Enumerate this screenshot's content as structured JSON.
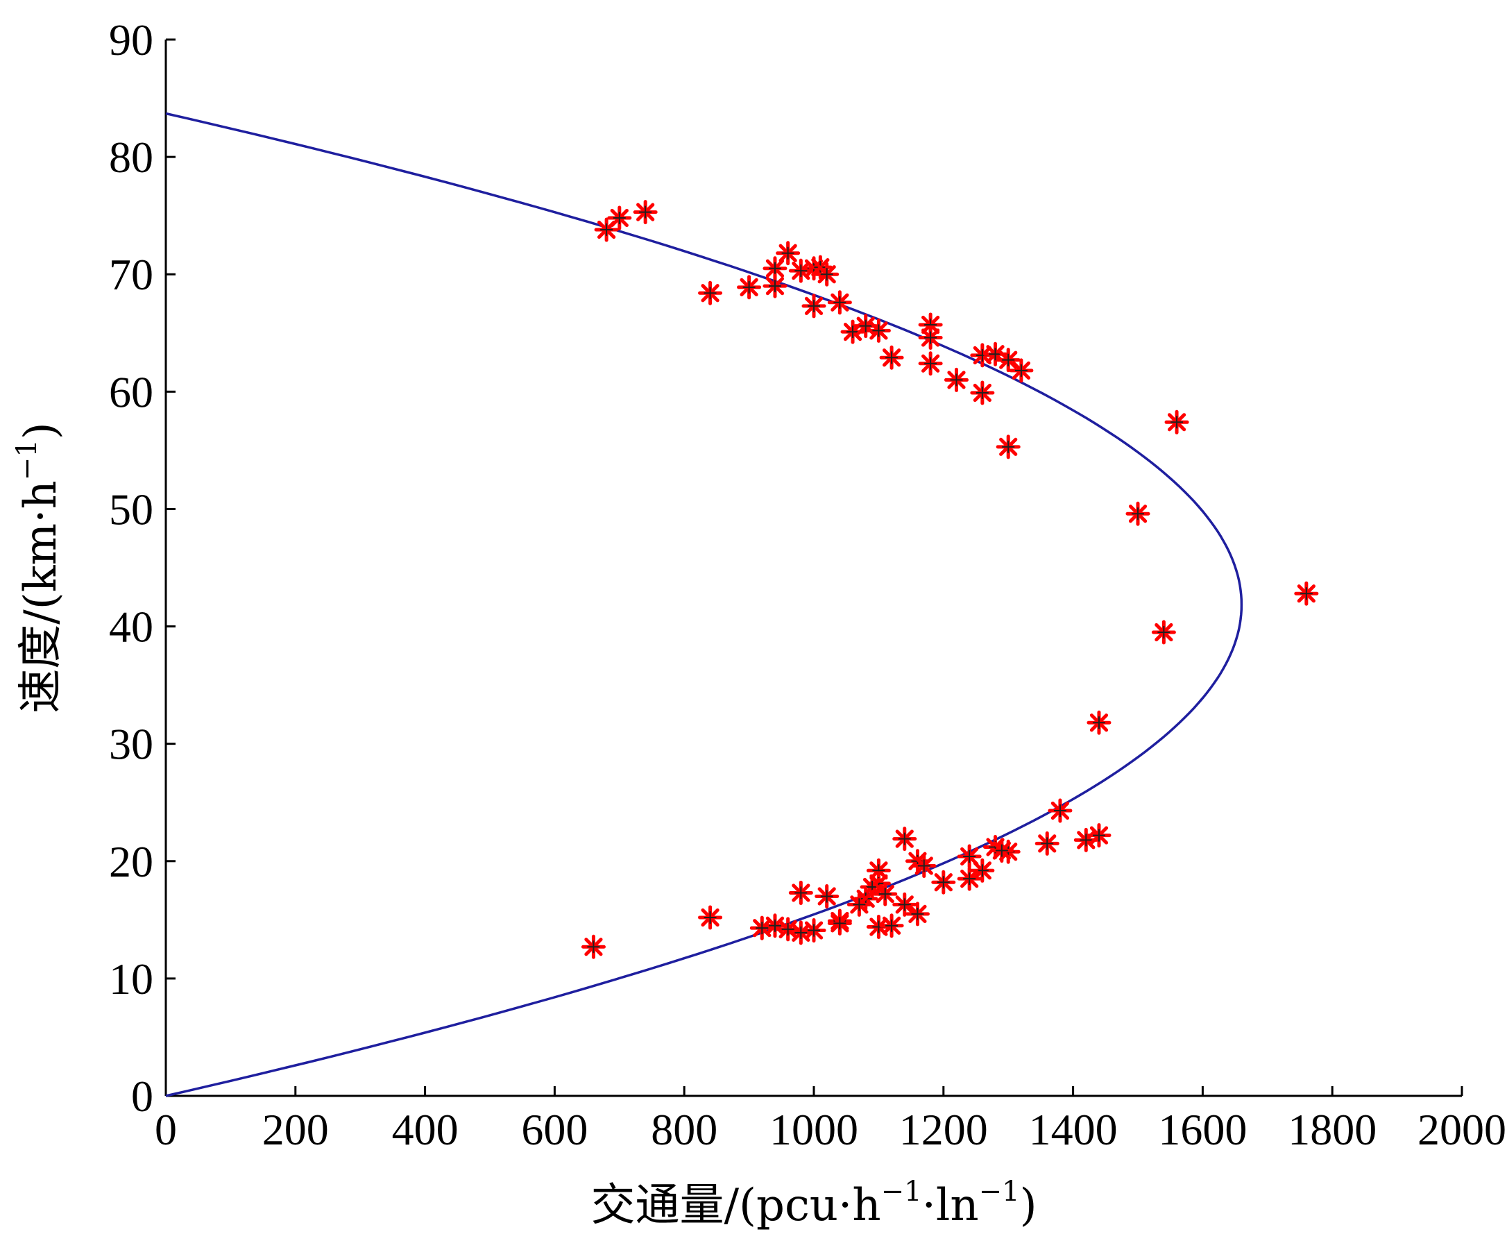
{
  "chart_data": {
    "type": "scatter",
    "title": "",
    "xlabel": {
      "base": "交通量/(pcu·h",
      "sup1": "−1",
      "mid": "·ln",
      "sup2": "−1",
      "end": ")"
    },
    "ylabel": {
      "base": "速度/(km·h",
      "sup": "−1",
      "end": ")"
    },
    "xlim": [
      0,
      2000
    ],
    "ylim": [
      0,
      90
    ],
    "xticks": [
      0,
      200,
      400,
      600,
      800,
      1000,
      1200,
      1400,
      1600,
      1800,
      2000
    ],
    "yticks": [
      0,
      10,
      20,
      30,
      40,
      50,
      60,
      70,
      80,
      90
    ],
    "grid": false,
    "marker_color": "#ff0000",
    "curve_color": "#1f1f9f",
    "fit_curve": {
      "type": "parabola",
      "free_flow_speed": 83.7,
      "max_flow": 1660
    },
    "points": [
      [
        680,
        73.8
      ],
      [
        700,
        74.8
      ],
      [
        740,
        75.3
      ],
      [
        840,
        68.4
      ],
      [
        900,
        68.9
      ],
      [
        940,
        70.5
      ],
      [
        940,
        69.0
      ],
      [
        960,
        71.8
      ],
      [
        980,
        70.3
      ],
      [
        1000,
        70.5
      ],
      [
        1010,
        70.6
      ],
      [
        1020,
        70.0
      ],
      [
        1000,
        67.3
      ],
      [
        1040,
        67.6
      ],
      [
        1060,
        65.1
      ],
      [
        1080,
        65.6
      ],
      [
        1100,
        65.2
      ],
      [
        1120,
        62.9
      ],
      [
        1180,
        65.7
      ],
      [
        1180,
        64.6
      ],
      [
        1180,
        62.4
      ],
      [
        1220,
        61.0
      ],
      [
        1260,
        59.9
      ],
      [
        1260,
        63.1
      ],
      [
        1280,
        63.2
      ],
      [
        1300,
        62.7
      ],
      [
        1320,
        61.8
      ],
      [
        1300,
        55.3
      ],
      [
        1560,
        57.4
      ],
      [
        1500,
        49.6
      ],
      [
        1540,
        39.5
      ],
      [
        1760,
        42.8
      ],
      [
        1440,
        31.8
      ],
      [
        1380,
        24.3
      ],
      [
        1420,
        21.8
      ],
      [
        1440,
        22.2
      ],
      [
        1360,
        21.5
      ],
      [
        1300,
        20.8
      ],
      [
        1280,
        21.2
      ],
      [
        1290,
        20.9
      ],
      [
        1240,
        20.4
      ],
      [
        1260,
        19.2
      ],
      [
        1240,
        18.5
      ],
      [
        1200,
        18.2
      ],
      [
        1160,
        20.0
      ],
      [
        1170,
        19.6
      ],
      [
        1140,
        21.9
      ],
      [
        1140,
        16.3
      ],
      [
        1160,
        15.5
      ],
      [
        1100,
        19.2
      ],
      [
        1100,
        18.1
      ],
      [
        1090,
        17.8
      ],
      [
        1110,
        17.2
      ],
      [
        1080,
        16.8
      ],
      [
        1070,
        16.3
      ],
      [
        1020,
        17.0
      ],
      [
        980,
        17.3
      ],
      [
        1040,
        14.9
      ],
      [
        1040,
        14.7
      ],
      [
        1100,
        14.4
      ],
      [
        1120,
        14.5
      ],
      [
        1000,
        14.1
      ],
      [
        980,
        13.9
      ],
      [
        960,
        14.2
      ],
      [
        940,
        14.5
      ],
      [
        920,
        14.3
      ],
      [
        840,
        15.2
      ],
      [
        660,
        12.7
      ]
    ]
  }
}
